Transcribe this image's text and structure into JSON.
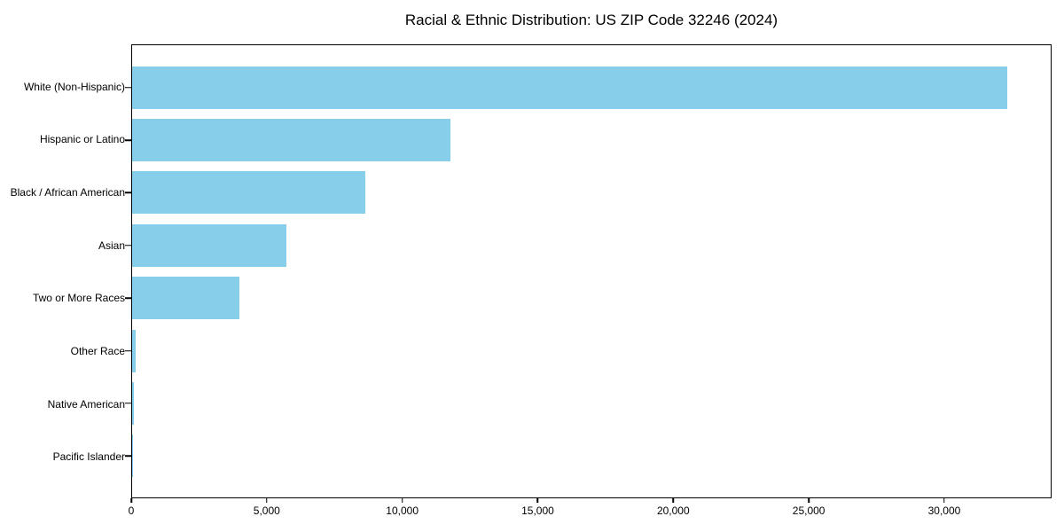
{
  "chart_data": {
    "type": "bar",
    "orientation": "horizontal",
    "title": "Racial & Ethnic Distribution: US ZIP Code 32246 (2024)",
    "xlabel": "",
    "ylabel": "",
    "categories": [
      "White (Non-Hispanic)",
      "Hispanic or Latino",
      "Black / African American",
      "Asian",
      "Two or More Races",
      "Other Race",
      "Native American",
      "Pacific Islander"
    ],
    "values": [
      32350,
      11760,
      8630,
      5700,
      3980,
      125,
      50,
      20
    ],
    "xlim": [
      0,
      33960
    ],
    "xticks": [
      0,
      5000,
      10000,
      15000,
      20000,
      25000,
      30000
    ],
    "xtick_labels": [
      "0",
      "5,000",
      "10,000",
      "15,000",
      "20,000",
      "25,000",
      "30,000"
    ],
    "bar_color": "#87CEEB",
    "grid": false,
    "legend": null
  }
}
